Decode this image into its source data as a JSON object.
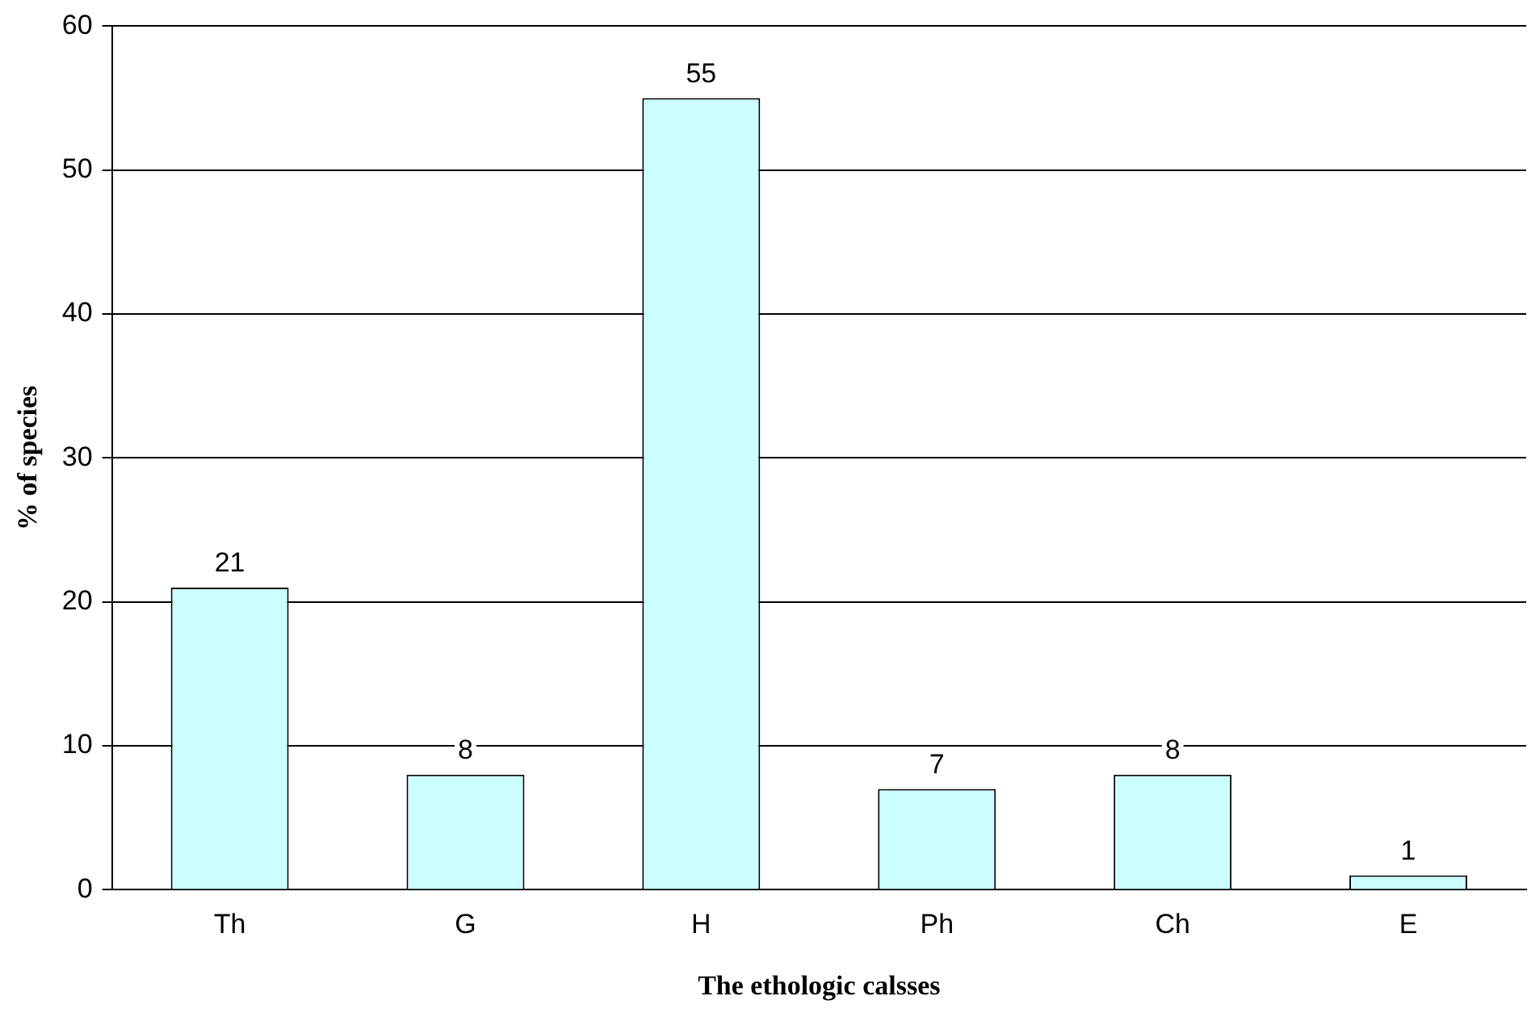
{
  "chart_data": {
    "type": "bar",
    "xlabel": "The ethologic calsses",
    "ylabel": "% of species",
    "categories": [
      "Th",
      "G",
      "H",
      "Ph",
      "Ch",
      "E"
    ],
    "values": [
      21,
      8,
      55,
      7,
      8,
      1
    ],
    "color": "#ccffff",
    "ylim": [
      0,
      60
    ],
    "yticks": [
      0,
      10,
      20,
      30,
      40,
      50,
      60
    ],
    "grid": "y",
    "data_labels": true,
    "legend": false
  }
}
